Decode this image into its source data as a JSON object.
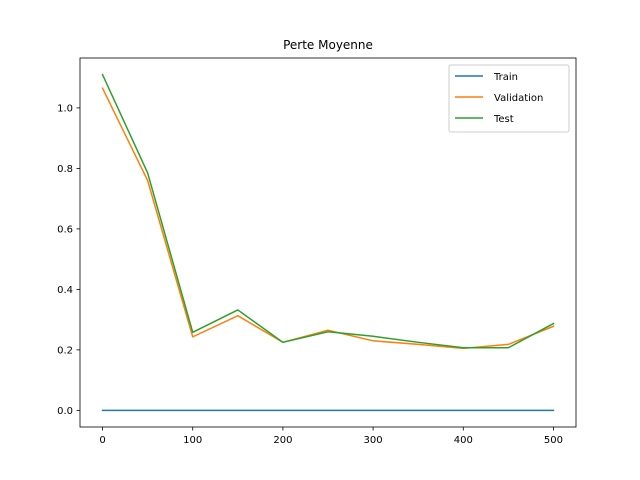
{
  "chart_data": {
    "type": "line",
    "title": "Perte Moyenne",
    "xlabel": "",
    "ylabel": "",
    "x": [
      0,
      50,
      100,
      150,
      200,
      250,
      300,
      350,
      400,
      450,
      500
    ],
    "xlim": [
      -25,
      525
    ],
    "ylim": [
      -0.055,
      1.165
    ],
    "xticks": [
      0,
      100,
      200,
      300,
      400,
      500
    ],
    "yticks": [
      0.0,
      0.2,
      0.4,
      0.6,
      0.8,
      1.0
    ],
    "xtick_labels": [
      "0",
      "100",
      "200",
      "300",
      "400",
      "500"
    ],
    "ytick_labels": [
      "0.0",
      "0.2",
      "0.4",
      "0.6",
      "0.8",
      "1.0"
    ],
    "grid": false,
    "legend_position": "top-right",
    "series": [
      {
        "name": "Train",
        "color": "#1f77b4",
        "values": [
          0.0,
          0.0,
          0.0,
          0.0,
          0.0,
          0.0,
          0.0,
          0.0,
          0.0,
          0.0,
          0.0
        ]
      },
      {
        "name": "Validation",
        "color": "#ff7f0e",
        "values": [
          1.065,
          0.76,
          0.243,
          0.313,
          0.225,
          0.265,
          0.23,
          0.218,
          0.205,
          0.218,
          0.278
        ]
      },
      {
        "name": "Test",
        "color": "#2ca02c",
        "values": [
          1.11,
          0.785,
          0.258,
          0.332,
          0.225,
          0.26,
          0.245,
          0.225,
          0.207,
          0.207,
          0.287
        ]
      }
    ]
  }
}
